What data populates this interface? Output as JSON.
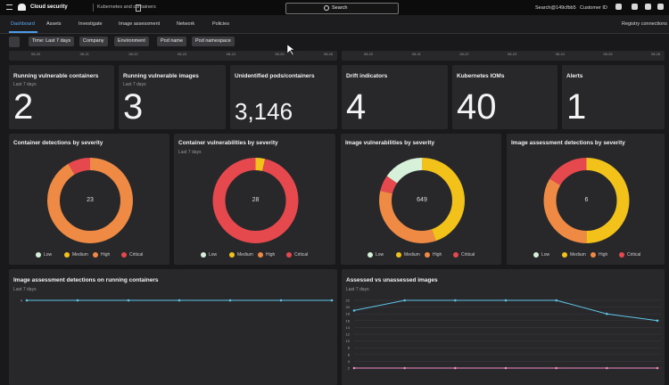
{
  "header": {
    "product": "Cloud security",
    "section": "Kubernetes and containers",
    "search": "Search",
    "user": "Search@149cfbb5",
    "customer": "Customer ID"
  },
  "nav": {
    "tabs": [
      "Dashboard",
      "Assets",
      "Investigate",
      "Image assessment",
      "Network",
      "Policies"
    ],
    "right": "Registry connections"
  },
  "filters": [
    "Time: Last 7 days",
    "Company",
    "Environment",
    "Pod name",
    "Pod namespace"
  ],
  "timeline": {
    "dates": [
      "08-20",
      "08-21",
      "08-22",
      "08-23",
      "08-24",
      "08-25",
      "08-26"
    ]
  },
  "stats": [
    {
      "title": "Running vulnerable containers",
      "subtitle": "Last 7 days",
      "value": "2"
    },
    {
      "title": "Running vulnerable images",
      "subtitle": "Last 7 days",
      "value": "3"
    },
    {
      "title": "Unidentified pods/containers",
      "value": "3,146"
    },
    {
      "title": "Drift indicators",
      "value": "4"
    },
    {
      "title": "Kubernetes IOMs",
      "value": "40"
    },
    {
      "title": "Alerts",
      "value": "1"
    }
  ],
  "donuts": [
    {
      "title": "Container detections by severity",
      "total": "23",
      "segments": [
        {
          "name": "Low",
          "color": "#d6f0d9",
          "value": 0
        },
        {
          "name": "Medium",
          "color": "#f2c21b",
          "value": 0
        },
        {
          "name": "High",
          "color": "#ef8a45",
          "value": 21
        },
        {
          "name": "Critical",
          "color": "#e5484d",
          "value": 2
        }
      ]
    },
    {
      "title": "Container vulnerabilities by severity",
      "subtitle": "Last 7 days",
      "total": "28",
      "segments": [
        {
          "name": "Low",
          "color": "#d6f0d9",
          "value": 0
        },
        {
          "name": "Medium",
          "color": "#f2c21b",
          "value": 1
        },
        {
          "name": "High",
          "color": "#ef8a45",
          "value": 0
        },
        {
          "name": "Critical",
          "color": "#e5484d",
          "value": 27
        }
      ]
    },
    {
      "title": "Image vulnerabilities by severity",
      "total": "649",
      "segments": [
        {
          "name": "Low",
          "color": "#d6f0d9",
          "value": 100
        },
        {
          "name": "Medium",
          "color": "#f2c21b",
          "value": 290
        },
        {
          "name": "High",
          "color": "#ef8a45",
          "value": 220
        },
        {
          "name": "Critical",
          "color": "#e5484d",
          "value": 39
        }
      ]
    },
    {
      "title": "Image assessment detections by severity",
      "total": "6",
      "segments": [
        {
          "name": "Low",
          "color": "#d6f0d9",
          "value": 0
        },
        {
          "name": "Medium",
          "color": "#f2c21b",
          "value": 3
        },
        {
          "name": "High",
          "color": "#ef8a45",
          "value": 2
        },
        {
          "name": "Critical",
          "color": "#e5484d",
          "value": 1
        }
      ]
    }
  ],
  "line_charts": [
    {
      "title": "Image assessment detections on running containers",
      "subtitle": "Last 7 days",
      "ylim": [
        0,
        4
      ],
      "yticks": [
        4
      ],
      "series": [
        {
          "color": "#5ec4e6",
          "values": [
            4,
            4,
            4,
            4,
            4,
            4,
            4
          ]
        }
      ]
    },
    {
      "title": "Assessed vs unassessed images",
      "subtitle": "Last 7 days",
      "ylim": [
        0,
        22
      ],
      "yticks": [
        22,
        20,
        18,
        16,
        14,
        12,
        10,
        8,
        6,
        4,
        2
      ],
      "series": [
        {
          "color": "#5ec4e6",
          "values": [
            19,
            22,
            22,
            22,
            22,
            18,
            16
          ]
        },
        {
          "color": "#f08cc0",
          "values": [
            2,
            2,
            2,
            2,
            2,
            2,
            2
          ]
        }
      ]
    }
  ]
}
